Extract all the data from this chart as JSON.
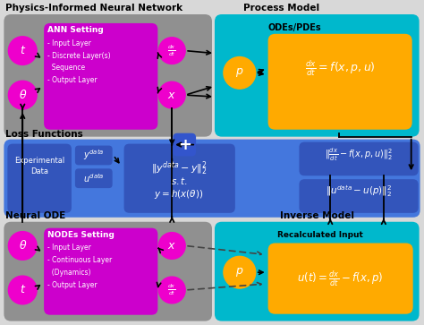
{
  "colors": {
    "gray_bg": "#909090",
    "cyan_bg": "#00b8cc",
    "blue_loss": "#4477dd",
    "orange_box": "#ffaa00",
    "magenta_circle": "#ee00cc",
    "magenta_box": "#cc00cc",
    "white": "#ffffff",
    "blue_plus": "#3355cc",
    "dark_blue_box": "#3355bb",
    "outer_bg": "#d8d8d8"
  },
  "labels": {
    "pinn": "Physics-Informed Neural Network",
    "process": "Process Model",
    "loss": "Loss Functions",
    "neural_ode": "Neural ODE",
    "inverse": "Inverse Model",
    "ann": "ANN Setting",
    "nodes": "NODEs Setting",
    "ann_items": [
      "- Input Layer",
      "- Discrete Layer(s)",
      "  Sequence",
      "- Output Layer"
    ],
    "nodes_items": [
      "- Input Layer",
      "- Continuous Layer",
      "  (Dynamics)",
      "- Output Layer"
    ],
    "odes_pdes": "ODEs/PDEs",
    "recalc": "Recalculated Input",
    "exp_data": "Experimental\nData"
  }
}
